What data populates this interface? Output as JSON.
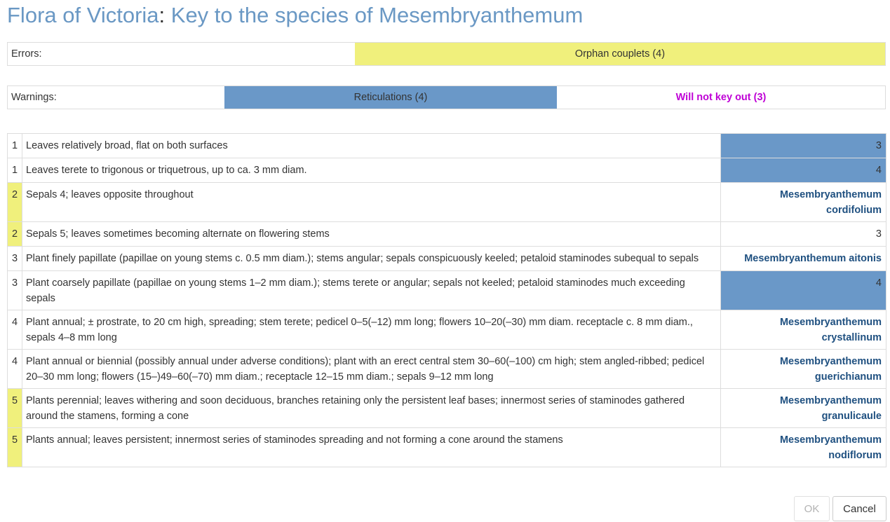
{
  "page": {
    "title_flora": "Flora of Victoria",
    "title_sep": ":",
    "title_key": "Key to the species of Mesembryanthemum"
  },
  "errors": {
    "label": "Errors:",
    "orphan": "Orphan couplets (4)"
  },
  "warnings": {
    "label": "Warnings:",
    "reticulations": "Reticulations (4)",
    "will_not_key_out": "Will not key out (3)"
  },
  "leads": [
    {
      "num": "1",
      "text": "Leaves relatively broad, flat on both surfaces",
      "result": "3",
      "taxon": false,
      "num_highlight": false,
      "result_highlight": true
    },
    {
      "num": "1",
      "text": "Leaves terete to trigonous or triquetrous, up to ca. 3 mm diam.",
      "result": "4",
      "taxon": false,
      "num_highlight": false,
      "result_highlight": true
    },
    {
      "num": "2",
      "text": "Sepals 4; leaves opposite throughout",
      "result": "Mesembryanthemum cordifolium",
      "taxon": true,
      "num_highlight": true,
      "result_highlight": false
    },
    {
      "num": "2",
      "text": "Sepals 5; leaves sometimes becoming alternate on flowering stems",
      "result": "3",
      "taxon": false,
      "num_highlight": true,
      "result_highlight": false
    },
    {
      "num": "3",
      "text": "Plant finely papillate (papillae on young stems c. 0.5 mm diam.); stems angular; sepals conspicuously keeled; petaloid staminodes subequal to sepals",
      "result": "Mesembryanthemum aitonis",
      "taxon": true,
      "num_highlight": false,
      "result_highlight": false
    },
    {
      "num": "3",
      "text": "Plant coarsely papillate (papillae on young stems 1–2 mm diam.); stems terete or angular; sepals not keeled; petaloid staminodes much exceeding sepals",
      "result": "4",
      "taxon": false,
      "num_highlight": false,
      "result_highlight": true
    },
    {
      "num": "4",
      "text": "Plant annual; ± prostrate, to 20 cm high, spreading; stem terete; pedicel 0–5(–12) mm long; flowers 10–20(–30) mm diam. receptacle c. 8 mm diam., sepals 4–8 mm long",
      "result": "Mesembryanthemum crystallinum",
      "taxon": true,
      "num_highlight": false,
      "result_highlight": false
    },
    {
      "num": "4",
      "text": "Plant annual or biennial (possibly annual under adverse conditions); plant with an erect central stem 30–60(–100) cm high; stem angled-ribbed; pedicel 20–30 mm long; flowers (15–)49–60(–70) mm diam.; receptacle 12–15 mm diam.; sepals 9–12 mm long",
      "result": "Mesembryanthemum guerichianum",
      "taxon": true,
      "num_highlight": false,
      "result_highlight": false
    },
    {
      "num": "5",
      "text": "Plants perennial; leaves withering and soon deciduous, branches retaining only the persistent leaf bases; innermost series of staminodes gathered around the stamens, forming a cone",
      "result": "Mesembryanthemum granulicaule",
      "taxon": true,
      "num_highlight": true,
      "result_highlight": false
    },
    {
      "num": "5",
      "text": "Plants annual; leaves persistent; innermost series of staminodes spreading and not forming a cone around the stamens",
      "result": "Mesembryanthemum nodiflorum",
      "taxon": true,
      "num_highlight": true,
      "result_highlight": false
    }
  ],
  "buttons": {
    "ok": "OK",
    "cancel": "Cancel"
  },
  "colors": {
    "title": "#6a98c4",
    "yellow_highlight": "#f0f07c",
    "blue_highlight": "#6a98c8",
    "taxon_link": "#1f5080",
    "will_not_key_out": "#bf00d6"
  }
}
